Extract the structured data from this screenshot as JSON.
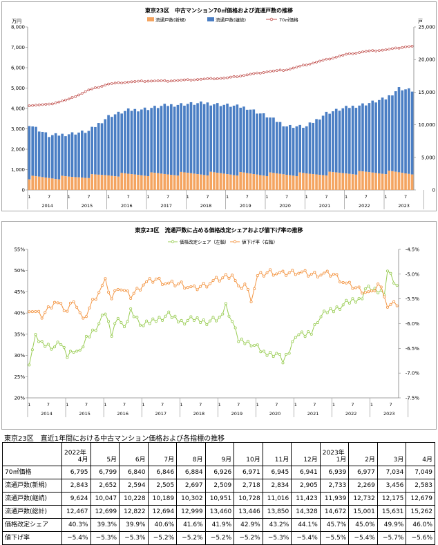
{
  "chart_data": [
    {
      "type": "bar+line",
      "title": "東京23区　中古マンション70㎡価格および流通戸数の推移",
      "left_unit": "万円",
      "right_unit": "戸",
      "ylim_left": [
        0,
        8000
      ],
      "ylim_right": [
        0,
        25000
      ],
      "left_ticks": [
        "0",
        "1,000",
        "2,000",
        "3,000",
        "4,000",
        "5,000",
        "6,000",
        "7,000",
        "8,000"
      ],
      "right_ticks": [
        "0",
        "5,000",
        "10,000",
        "15,000",
        "20,000",
        "25,000"
      ],
      "legend": [
        "流通戸数(新規)",
        "流通戸数(継続)",
        "70㎡価格"
      ],
      "x_month_labels": [
        "1",
        "7",
        "1",
        "7",
        "1",
        "7",
        "1",
        "7",
        "1",
        "7",
        "1",
        "7",
        "1",
        "7",
        "1",
        "7",
        "1",
        "7",
        "1",
        "7"
      ],
      "x_year_labels": [
        "2014",
        "2015",
        "2016",
        "2017",
        "2018",
        "2019",
        "2020",
        "2021",
        "2022",
        "2023"
      ],
      "price_anchors": [
        [
          0,
          4150
        ],
        [
          6,
          4200
        ],
        [
          12,
          4450
        ],
        [
          18,
          4900
        ],
        [
          24,
          5200
        ],
        [
          30,
          5300
        ],
        [
          36,
          5350
        ],
        [
          42,
          5350
        ],
        [
          48,
          5400
        ],
        [
          54,
          5450
        ],
        [
          60,
          5500
        ],
        [
          66,
          5650
        ],
        [
          72,
          5800
        ],
        [
          78,
          5900
        ],
        [
          84,
          6150
        ],
        [
          90,
          6400
        ],
        [
          96,
          6650
        ],
        [
          102,
          6800
        ],
        [
          108,
          6880
        ],
        [
          111,
          6950
        ],
        [
          114,
          7030
        ],
        [
          116,
          7049
        ]
      ],
      "total_units_anchors": [
        [
          0,
          10100
        ],
        [
          6,
          8300
        ],
        [
          12,
          8600
        ],
        [
          18,
          9000
        ],
        [
          24,
          11300
        ],
        [
          30,
          12200
        ],
        [
          36,
          12500
        ],
        [
          42,
          13000
        ],
        [
          48,
          13200
        ],
        [
          54,
          13300
        ],
        [
          60,
          13000
        ],
        [
          66,
          12600
        ],
        [
          72,
          11300
        ],
        [
          78,
          9800
        ],
        [
          84,
          9700
        ],
        [
          90,
          11800
        ],
        [
          96,
          12600
        ],
        [
          102,
          13200
        ],
        [
          108,
          14000
        ],
        [
          112,
          15600
        ],
        [
          116,
          15262
        ]
      ],
      "new_units_anchors": [
        [
          0,
          1900
        ],
        [
          12,
          1900
        ],
        [
          24,
          2300
        ],
        [
          36,
          2400
        ],
        [
          48,
          2500
        ],
        [
          60,
          2500
        ],
        [
          72,
          2400
        ],
        [
          84,
          2400
        ],
        [
          96,
          2600
        ],
        [
          108,
          2700
        ],
        [
          116,
          2583
        ]
      ]
    },
    {
      "type": "line",
      "title": "東京23区　流通戸数に占める価格改定シェアおよび値下げ率の推移",
      "legend": [
        "価格改定シェア（左軸）",
        "値下げ率（右軸）"
      ],
      "ylim_left": [
        0.2,
        0.55
      ],
      "ylim_right": [
        -0.075,
        -0.045
      ],
      "left_ticks": [
        "20%",
        "25%",
        "30%",
        "35%",
        "40%",
        "45%",
        "50%",
        "55%"
      ],
      "right_ticks": [
        "-4.5%",
        "-5.0%",
        "-5.5%",
        "-6.0%",
        "-6.5%",
        "-7.0%",
        "-7.5%"
      ],
      "x_month_labels": [
        "1",
        "7",
        "1",
        "7",
        "1",
        "7",
        "1",
        "7",
        "1",
        "7",
        "1",
        "7",
        "1",
        "7",
        "1",
        "7",
        "1",
        "7",
        "1",
        "7"
      ],
      "x_year_labels": [
        "2014",
        "2015",
        "2016",
        "2017",
        "2018",
        "2019",
        "2020",
        "2021",
        "2022",
        "2023"
      ],
      "share_anchors": [
        [
          0,
          28.5
        ],
        [
          2,
          34.2
        ],
        [
          4,
          32.8
        ],
        [
          8,
          32.0
        ],
        [
          10,
          32.8
        ],
        [
          12,
          30.0
        ],
        [
          14,
          31.5
        ],
        [
          16,
          30.5
        ],
        [
          18,
          34.0
        ],
        [
          22,
          37.5
        ],
        [
          24,
          40.0
        ],
        [
          26,
          35.0
        ],
        [
          28,
          39.5
        ],
        [
          30,
          36.0
        ],
        [
          32,
          40.5
        ],
        [
          36,
          37.0
        ],
        [
          40,
          38.5
        ],
        [
          44,
          39.5
        ],
        [
          48,
          38.0
        ],
        [
          52,
          38.5
        ],
        [
          56,
          38.0
        ],
        [
          60,
          38.5
        ],
        [
          62,
          42.0
        ],
        [
          64,
          38.0
        ],
        [
          66,
          33.5
        ],
        [
          70,
          33.0
        ],
        [
          74,
          30.5
        ],
        [
          78,
          30.5
        ],
        [
          80,
          28.5
        ],
        [
          82,
          31.0
        ],
        [
          84,
          35.0
        ],
        [
          87,
          34.7
        ],
        [
          89,
          35.5
        ],
        [
          91,
          38.5
        ],
        [
          94,
          40.3
        ],
        [
          96,
          40.8
        ],
        [
          98,
          41.6
        ],
        [
          102,
          42.9
        ],
        [
          104,
          43.2
        ],
        [
          105,
          44.1
        ],
        [
          106,
          45.7
        ],
        [
          112,
          45.0
        ],
        [
          113,
          49.9
        ],
        [
          116,
          46.0
        ]
      ],
      "rate_anchors": [
        [
          0,
          -5.7
        ],
        [
          4,
          -5.85
        ],
        [
          8,
          -5.55
        ],
        [
          12,
          -5.75
        ],
        [
          14,
          -5.5
        ],
        [
          17,
          -5.95
        ],
        [
          20,
          -5.55
        ],
        [
          24,
          -5.15
        ],
        [
          26,
          -5.5
        ],
        [
          28,
          -5.25
        ],
        [
          32,
          -5.45
        ],
        [
          36,
          -5.2
        ],
        [
          40,
          -5.1
        ],
        [
          44,
          -5.2
        ],
        [
          48,
          -5.2
        ],
        [
          52,
          -5.3
        ],
        [
          56,
          -5.2
        ],
        [
          60,
          -5.1
        ],
        [
          64,
          -5.0
        ],
        [
          66,
          -5.3
        ],
        [
          68,
          -5.2
        ],
        [
          70,
          -5.5
        ],
        [
          72,
          -5.05
        ],
        [
          76,
          -4.95
        ],
        [
          80,
          -5.0
        ],
        [
          84,
          -4.95
        ],
        [
          88,
          -5.0
        ],
        [
          92,
          -5.0
        ],
        [
          96,
          -5.0
        ],
        [
          100,
          -5.2
        ],
        [
          104,
          -5.3
        ],
        [
          108,
          -5.4
        ],
        [
          110,
          -5.2
        ],
        [
          112,
          -5.4
        ],
        [
          113,
          -5.65
        ],
        [
          116,
          -5.6
        ]
      ]
    }
  ],
  "table": {
    "title": "東京23区　直近1年間における中古マンション価格および各指標の推移",
    "years": {
      "c0": "2022年",
      "c9": "2023年"
    },
    "columns": [
      "4月",
      "5月",
      "6月",
      "7月",
      "8月",
      "9月",
      "10月",
      "11月",
      "12月",
      "1月",
      "2月",
      "3月",
      "4月"
    ],
    "rows": [
      {
        "label": "70㎡価格",
        "values": [
          "6,795",
          "6,799",
          "6,840",
          "6,846",
          "6,884",
          "6,926",
          "6,971",
          "6,945",
          "6,941",
          "6,939",
          "6,977",
          "7,034",
          "7,049"
        ]
      },
      {
        "label": "流通戸数(新規)",
        "values": [
          "2,843",
          "2,652",
          "2,594",
          "2,505",
          "2,697",
          "2,509",
          "2,718",
          "2,834",
          "2,905",
          "2,733",
          "2,269",
          "3,456",
          "2,583"
        ]
      },
      {
        "label": "流通戸数(継続)",
        "values": [
          "9,624",
          "10,047",
          "10,228",
          "10,189",
          "10,302",
          "10,951",
          "10,728",
          "11,016",
          "11,423",
          "11,939",
          "12,732",
          "12,175",
          "12,679"
        ]
      },
      {
        "label": "流通戸数(総計)",
        "values": [
          "12,467",
          "12,699",
          "12,822",
          "12,694",
          "12,999",
          "13,460",
          "13,446",
          "13,850",
          "14,328",
          "14,672",
          "15,001",
          "15,631",
          "15,262"
        ]
      },
      {
        "label": "価格改定シェア",
        "values": [
          "40.3%",
          "39.3%",
          "39.9%",
          "40.6%",
          "41.6%",
          "41.9%",
          "42.9%",
          "43.2%",
          "44.1%",
          "45.7%",
          "45.0%",
          "49.9%",
          "46.0%"
        ]
      },
      {
        "label": "値下げ率",
        "values": [
          "−5.4%",
          "−5.3%",
          "−5.3%",
          "−5.2%",
          "−5.2%",
          "−5.2%",
          "−5.2%",
          "−5.3%",
          "−5.4%",
          "−5.5%",
          "−5.4%",
          "−5.7%",
          "−5.6%"
        ]
      }
    ]
  },
  "colors": {
    "new_units": "#f4a460",
    "cont_units": "#4a7ec4",
    "price": "#c0504d",
    "share": "#9acd55",
    "rate": "#f39441"
  }
}
